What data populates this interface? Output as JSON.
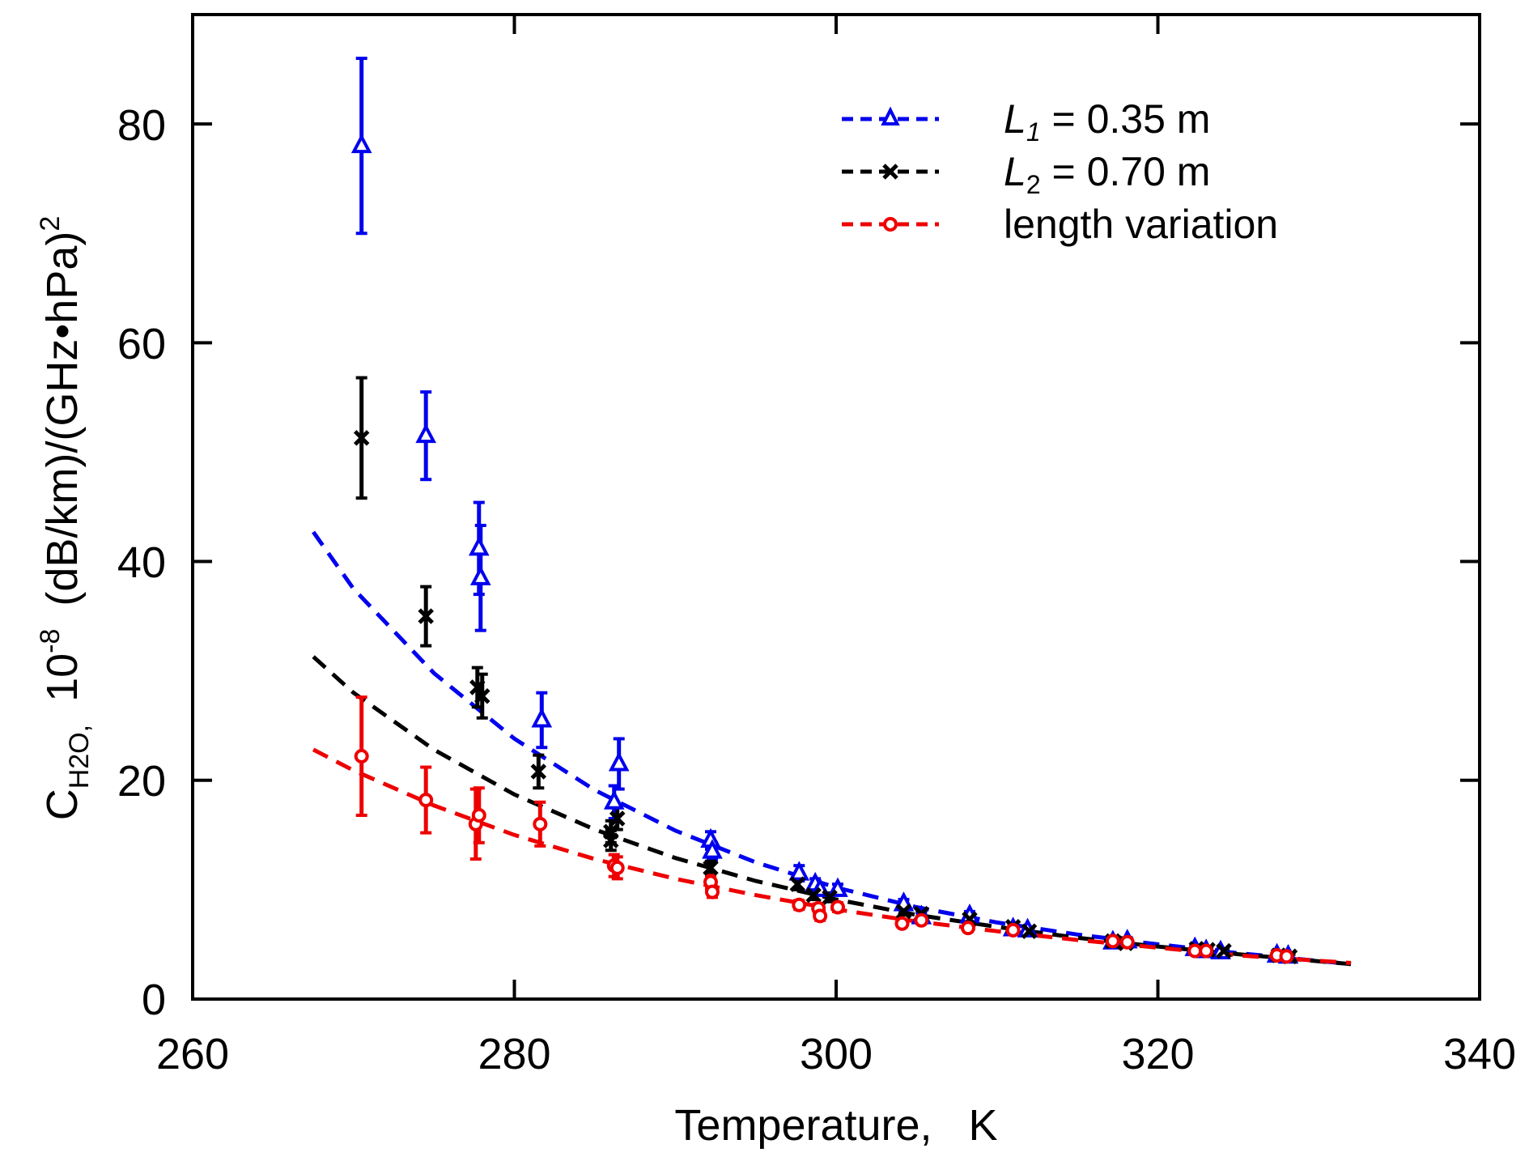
{
  "chart_data": {
    "type": "scatter",
    "xlabel": "Temperature,   K",
    "ylabel": {
      "base": "C",
      "subscript": "H2O,",
      "scale": "10",
      "scale_exp": "-8",
      "units": "(dB/km)/(GHz•hPa)",
      "units_exp": "2"
    },
    "xlim": [
      260,
      340
    ],
    "ylim": [
      0,
      90
    ],
    "x_ticks": [
      "260",
      "280",
      "300",
      "320",
      "340"
    ],
    "y_ticks": [
      "0",
      "20",
      "40",
      "60",
      "80"
    ],
    "legend_position": "top-right",
    "series": [
      {
        "name": "L1 = 0.35 m",
        "label_italic": "L",
        "label_sub": "1",
        "label_rest": " = 0.35 m",
        "color": "#0000ee",
        "marker": "triangle",
        "points": [
          {
            "x": 270.5,
            "y": 78,
            "err": 8
          },
          {
            "x": 274.5,
            "y": 51.5,
            "err": 4
          },
          {
            "x": 277.8,
            "y": 41.2,
            "err": 4.2
          },
          {
            "x": 277.9,
            "y": 38.5,
            "err": 4.8
          },
          {
            "x": 281.7,
            "y": 25.5,
            "err": 2.5
          },
          {
            "x": 286.2,
            "y": 18,
            "err": 1.5
          },
          {
            "x": 286.5,
            "y": 21.5,
            "err": 2.3
          },
          {
            "x": 292.2,
            "y": 14.5,
            "err": 0.8
          },
          {
            "x": 292.3,
            "y": 13.5,
            "err": 0.8
          },
          {
            "x": 297.7,
            "y": 11.5,
            "err": 0.7
          },
          {
            "x": 298.7,
            "y": 10.5,
            "err": 0.5
          },
          {
            "x": 299,
            "y": 10,
            "err": 0.5
          },
          {
            "x": 300.1,
            "y": 10,
            "err": 0.5
          },
          {
            "x": 304.2,
            "y": 8.7,
            "err": 0.4
          },
          {
            "x": 305.3,
            "y": 7.5,
            "err": 0.4
          },
          {
            "x": 308.3,
            "y": 7.6,
            "err": 0.4
          },
          {
            "x": 311,
            "y": 6.4,
            "err": 0.3
          },
          {
            "x": 311.9,
            "y": 6.3,
            "err": 0.3
          },
          {
            "x": 317.2,
            "y": 5.2,
            "err": 0.3
          },
          {
            "x": 318.1,
            "y": 5.3,
            "err": 0.3
          },
          {
            "x": 322.3,
            "y": 4.6,
            "err": 0.2
          },
          {
            "x": 323,
            "y": 4.4,
            "err": 0.2
          },
          {
            "x": 323.9,
            "y": 4.3,
            "err": 0.2
          },
          {
            "x": 327.4,
            "y": 4,
            "err": 0.2
          },
          {
            "x": 328.1,
            "y": 3.9,
            "err": 0.2
          }
        ],
        "fit": [
          {
            "x": 267.5,
            "y": 42.7
          },
          {
            "x": 270,
            "y": 37.5
          },
          {
            "x": 275,
            "y": 29.8
          },
          {
            "x": 280,
            "y": 23.8
          },
          {
            "x": 285,
            "y": 19.1
          },
          {
            "x": 290,
            "y": 15.4
          },
          {
            "x": 295,
            "y": 12.5
          },
          {
            "x": 300,
            "y": 10.2
          },
          {
            "x": 305,
            "y": 8.4
          },
          {
            "x": 310,
            "y": 7
          },
          {
            "x": 315,
            "y": 5.9
          },
          {
            "x": 320,
            "y": 5
          },
          {
            "x": 325,
            "y": 4.2
          },
          {
            "x": 332,
            "y": 3.2
          }
        ]
      },
      {
        "name": "L2 = 0.70 m",
        "label_italic": "L",
        "label_sub": "2",
        "label_rest": " = 0.70 m",
        "color": "#000000",
        "marker": "cross",
        "points": [
          {
            "x": 270.5,
            "y": 51.3,
            "err": 5.5
          },
          {
            "x": 274.5,
            "y": 35,
            "err": 2.7
          },
          {
            "x": 277.7,
            "y": 28.5,
            "err": 1.8
          },
          {
            "x": 278,
            "y": 27.7,
            "err": 2
          },
          {
            "x": 281.5,
            "y": 20.8,
            "err": 1.5
          },
          {
            "x": 286,
            "y": 15.3,
            "err": 1
          },
          {
            "x": 286,
            "y": 14.5,
            "err": 0.9
          },
          {
            "x": 286.4,
            "y": 16.5,
            "err": 1
          },
          {
            "x": 292.2,
            "y": 12,
            "err": 0.6
          },
          {
            "x": 297.6,
            "y": 10.5,
            "err": 0.5
          },
          {
            "x": 298.6,
            "y": 9.5,
            "err": 0.4
          },
          {
            "x": 299.6,
            "y": 9.3,
            "err": 0.4
          },
          {
            "x": 304.2,
            "y": 8,
            "err": 0.3
          },
          {
            "x": 305.3,
            "y": 7.8,
            "err": 0.3
          },
          {
            "x": 308.3,
            "y": 7.3,
            "err": 0.3
          },
          {
            "x": 311,
            "y": 6.6,
            "err": 0.3
          },
          {
            "x": 312,
            "y": 6.2,
            "err": 0.3
          },
          {
            "x": 317.2,
            "y": 5.3,
            "err": 0.2
          },
          {
            "x": 318,
            "y": 5.1,
            "err": 0.2
          },
          {
            "x": 322.4,
            "y": 4.6,
            "err": 0.2
          },
          {
            "x": 323.1,
            "y": 4.5,
            "err": 0.2
          },
          {
            "x": 324.1,
            "y": 4.4,
            "err": 0.2
          },
          {
            "x": 327.5,
            "y": 4,
            "err": 0.2
          },
          {
            "x": 328.2,
            "y": 3.9,
            "err": 0.2
          }
        ],
        "fit": [
          {
            "x": 267.5,
            "y": 31.3
          },
          {
            "x": 270,
            "y": 28
          },
          {
            "x": 275,
            "y": 22.8
          },
          {
            "x": 280,
            "y": 18.7
          },
          {
            "x": 285,
            "y": 15.5
          },
          {
            "x": 290,
            "y": 12.9
          },
          {
            "x": 295,
            "y": 10.8
          },
          {
            "x": 300,
            "y": 9.1
          },
          {
            "x": 305,
            "y": 7.7
          },
          {
            "x": 310,
            "y": 6.6
          },
          {
            "x": 315,
            "y": 5.6
          },
          {
            "x": 320,
            "y": 4.8
          },
          {
            "x": 325,
            "y": 4.1
          },
          {
            "x": 332,
            "y": 3.2
          }
        ]
      },
      {
        "name": "length variation",
        "label_italic": "",
        "label_sub": "",
        "label_rest": "length variation",
        "color": "#ee0000",
        "marker": "circle",
        "points": [
          {
            "x": 270.5,
            "y": 22.2,
            "err": 5.4
          },
          {
            "x": 274.5,
            "y": 18.2,
            "err": 3
          },
          {
            "x": 277.6,
            "y": 16,
            "err": 3.2
          },
          {
            "x": 277.8,
            "y": 16.8,
            "err": 2.5
          },
          {
            "x": 281.6,
            "y": 16,
            "err": 2
          },
          {
            "x": 286.2,
            "y": 12.2,
            "err": 1
          },
          {
            "x": 286.4,
            "y": 12,
            "err": 1
          },
          {
            "x": 292.2,
            "y": 10.7,
            "err": 0.6
          },
          {
            "x": 292.3,
            "y": 9.8,
            "err": 0.5
          },
          {
            "x": 297.7,
            "y": 8.6,
            "err": 0.4
          },
          {
            "x": 298.9,
            "y": 8.3,
            "err": 0.4
          },
          {
            "x": 299,
            "y": 7.6,
            "err": 0.4
          },
          {
            "x": 300.1,
            "y": 8.4,
            "err": 0.4
          },
          {
            "x": 304.1,
            "y": 6.9,
            "err": 0.3
          },
          {
            "x": 305.3,
            "y": 7.2,
            "err": 0.3
          },
          {
            "x": 308.2,
            "y": 6.5,
            "err": 0.3
          },
          {
            "x": 311,
            "y": 6.3,
            "err": 0.3
          },
          {
            "x": 317.2,
            "y": 5.3,
            "err": 0.2
          },
          {
            "x": 318.1,
            "y": 5.2,
            "err": 0.2
          },
          {
            "x": 322.3,
            "y": 4.4,
            "err": 0.2
          },
          {
            "x": 323,
            "y": 4.4,
            "err": 0.2
          },
          {
            "x": 327.4,
            "y": 4,
            "err": 0.2
          },
          {
            "x": 328,
            "y": 3.9,
            "err": 0.2
          }
        ],
        "fit": [
          {
            "x": 267.5,
            "y": 22.8
          },
          {
            "x": 270,
            "y": 20.9
          },
          {
            "x": 275,
            "y": 17.7
          },
          {
            "x": 280,
            "y": 15
          },
          {
            "x": 285,
            "y": 12.8
          },
          {
            "x": 290,
            "y": 11
          },
          {
            "x": 295,
            "y": 9.5
          },
          {
            "x": 300,
            "y": 8.2
          },
          {
            "x": 305,
            "y": 7.1
          },
          {
            "x": 310,
            "y": 6.2
          },
          {
            "x": 315,
            "y": 5.4
          },
          {
            "x": 320,
            "y": 4.7
          },
          {
            "x": 325,
            "y": 4
          },
          {
            "x": 332,
            "y": 3.3
          }
        ]
      }
    ]
  }
}
